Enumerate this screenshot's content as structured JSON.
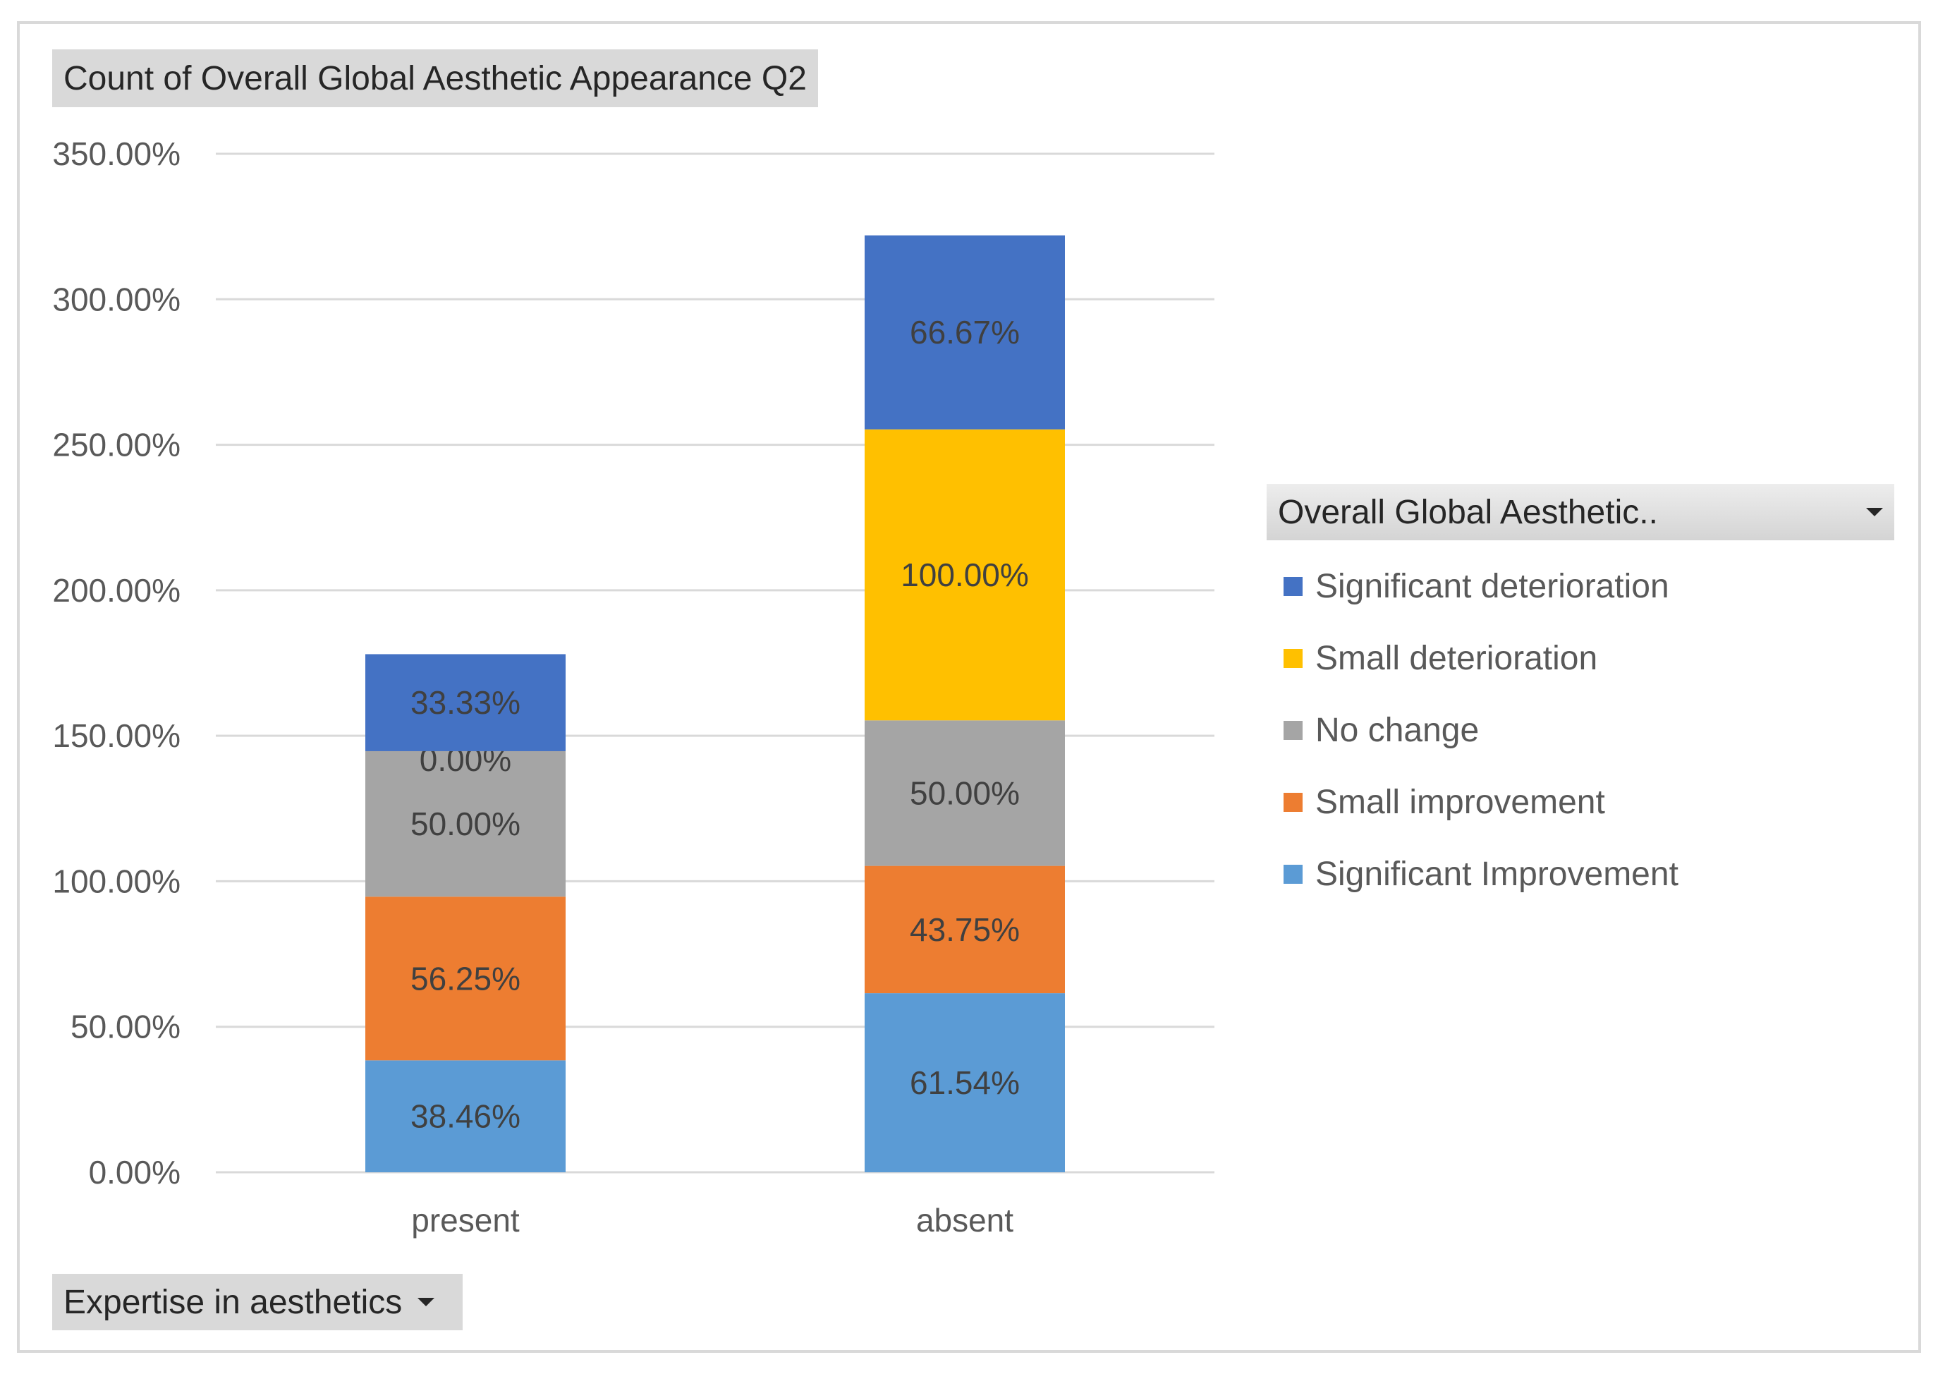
{
  "chart_data": {
    "type": "bar",
    "stacked": true,
    "title": "Count of Overall Global Aesthetic Appearance Q2",
    "xlabel": "Expertise in aesthetics",
    "ylabel": "",
    "categories": [
      "present",
      "absent"
    ],
    "ylim": [
      0,
      350
    ],
    "yticks": [
      0,
      50,
      100,
      150,
      200,
      250,
      300,
      350
    ],
    "ytick_labels": [
      "0.00%",
      "50.00%",
      "100.00%",
      "150.00%",
      "200.00%",
      "250.00%",
      "300.00%",
      "350.00%"
    ],
    "grid": true,
    "legend_position": "right",
    "legend_title": "Overall Global Aesthetic..",
    "series": [
      {
        "name": "Significant Improvement",
        "color": "#5B9BD5",
        "values": [
          38.46,
          61.54
        ],
        "labels": [
          "38.46%",
          "61.54%"
        ]
      },
      {
        "name": "Small improvement",
        "color": "#ED7D31",
        "values": [
          56.25,
          43.75
        ],
        "labels": [
          "56.25%",
          "43.75%"
        ]
      },
      {
        "name": "No change",
        "color": "#A5A5A5",
        "values": [
          50.0,
          50.0
        ],
        "labels": [
          "50.00%",
          "50.00%"
        ]
      },
      {
        "name": "Small deterioration",
        "color": "#FFC000",
        "values": [
          0.0,
          100.0
        ],
        "labels": [
          "0.00%",
          "100.00%"
        ]
      },
      {
        "name": "Significant deterioration",
        "color": "#4472C4",
        "values": [
          33.33,
          66.67
        ],
        "labels": [
          "33.33%",
          "66.67%"
        ]
      }
    ]
  },
  "legend_order": [
    "Significant deterioration",
    "Small deterioration",
    "No change",
    "Small improvement",
    "Significant Improvement"
  ]
}
